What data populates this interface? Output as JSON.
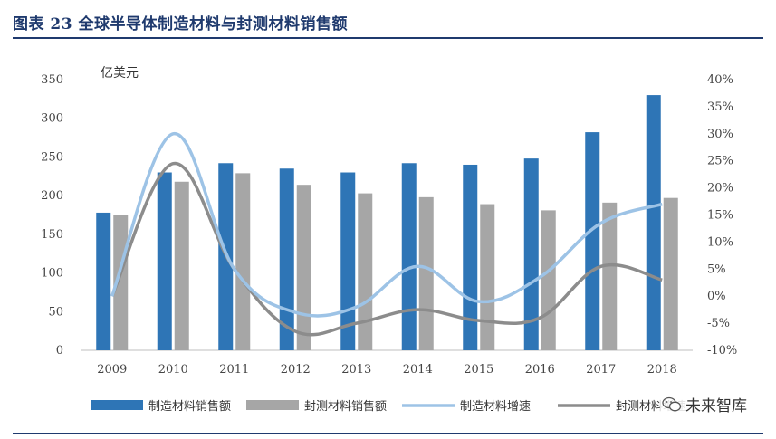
{
  "header": {
    "title": "图表 23  全球半导体制造材料与封测材料销售额"
  },
  "watermark": {
    "text": "未来智库",
    "icon": "wechat-icon"
  },
  "chart_data": {
    "type": "bar",
    "unit_label": "亿美元",
    "categories": [
      "2009",
      "2010",
      "2011",
      "2012",
      "2013",
      "2014",
      "2015",
      "2016",
      "2017",
      "2018"
    ],
    "series": [
      {
        "name": "制造材料销售额",
        "kind": "bar",
        "axis": "left",
        "color": "#2e75b6",
        "values": [
          178,
          230,
          242,
          235,
          230,
          242,
          240,
          248,
          282,
          330
        ]
      },
      {
        "name": "封测材料销售额",
        "kind": "bar",
        "axis": "left",
        "color": "#a6a6a6",
        "values": [
          175,
          218,
          229,
          214,
          203,
          198,
          189,
          181,
          191,
          197
        ]
      },
      {
        "name": "制造材料增速",
        "kind": "line",
        "axis": "right",
        "color": "#9dc3e6",
        "values": [
          0.0,
          0.3,
          0.05,
          -0.03,
          -0.02,
          0.055,
          -0.01,
          0.035,
          0.135,
          0.17
        ]
      },
      {
        "name": "封测材料增速",
        "kind": "line",
        "axis": "right",
        "color": "#8c8c8c",
        "values": [
          0.0,
          0.245,
          0.05,
          -0.065,
          -0.05,
          -0.025,
          -0.045,
          -0.04,
          0.055,
          0.03
        ]
      }
    ],
    "ylim_left": [
      0,
      350
    ],
    "yticks_left": [
      "0",
      "50",
      "100",
      "150",
      "200",
      "250",
      "300",
      "350"
    ],
    "ylim_right": [
      -0.1,
      0.4
    ],
    "yticks_right": [
      "-10%",
      "-5%",
      "0%",
      "5%",
      "10%",
      "15%",
      "20%",
      "25%",
      "30%",
      "35%",
      "40%"
    ],
    "grid": false,
    "legend_position": "bottom"
  }
}
